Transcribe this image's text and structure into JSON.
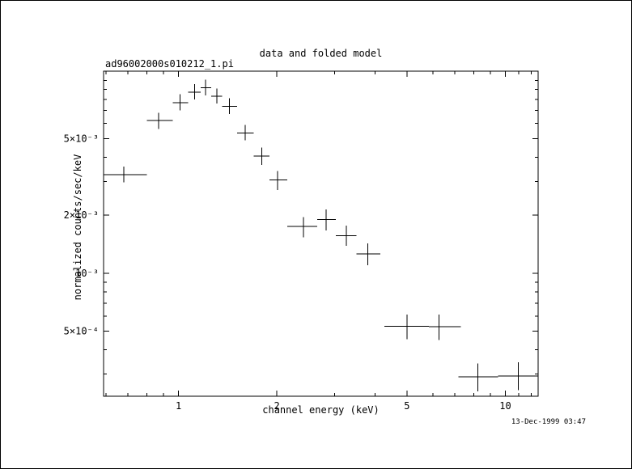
{
  "window": {
    "background": "#ffffff",
    "foreground": "#000000"
  },
  "chart_data": {
    "type": "scatter",
    "marker": "plus-with-error-bars",
    "title": "data and folded model",
    "dataset_label": "ad96002000s010212_1.pi",
    "xlabel": "channel energy (keV)",
    "ylabel": "normalized counts/sec/keV",
    "timestamp": "13-Dec-1999 03:47",
    "x_scale": "log",
    "y_scale": "log",
    "xlim": [
      0.59,
      12.6
    ],
    "ylim": [
      0.00023,
      0.0112
    ],
    "grid": false,
    "legend": false,
    "stroke": "#000000",
    "x_major_ticks": [
      1,
      2,
      5,
      10
    ],
    "x_major_tick_labels": [
      "1",
      "2",
      "5",
      "10"
    ],
    "x_minor_ticks": [
      0.6,
      0.7,
      0.8,
      0.9,
      3,
      4,
      6,
      7,
      8,
      9,
      11,
      12
    ],
    "y_major_ticks": [
      0.005,
      0.002,
      0.001,
      0.0005
    ],
    "y_major_tick_labels": [
      "5×10⁻³",
      "2×10⁻³",
      "10⁻³",
      "5×10⁻⁴"
    ],
    "y_minor_ticks": [
      0.01,
      0.009,
      0.008,
      0.007,
      0.006,
      0.004,
      0.003,
      0.0009,
      0.0008,
      0.0007,
      0.0006,
      0.0004,
      0.0003
    ],
    "points": [
      {
        "x": 0.68,
        "x_lo": 0.59,
        "x_hi": 0.8,
        "y": 0.00325,
        "y_lo": 0.00297,
        "y_hi": 0.00358
      },
      {
        "x": 0.87,
        "x_lo": 0.8,
        "x_hi": 0.96,
        "y": 0.0062,
        "y_lo": 0.0056,
        "y_hi": 0.0068
      },
      {
        "x": 1.01,
        "x_lo": 0.96,
        "x_hi": 1.07,
        "y": 0.0077,
        "y_lo": 0.007,
        "y_hi": 0.0085
      },
      {
        "x": 1.12,
        "x_lo": 1.07,
        "x_hi": 1.17,
        "y": 0.0087,
        "y_lo": 0.008,
        "y_hi": 0.0096
      },
      {
        "x": 1.21,
        "x_lo": 1.17,
        "x_hi": 1.26,
        "y": 0.0092,
        "y_lo": 0.0084,
        "y_hi": 0.0101
      },
      {
        "x": 1.31,
        "x_lo": 1.26,
        "x_hi": 1.36,
        "y": 0.0083,
        "y_lo": 0.0076,
        "y_hi": 0.0091
      },
      {
        "x": 1.43,
        "x_lo": 1.36,
        "x_hi": 1.51,
        "y": 0.00735,
        "y_lo": 0.0067,
        "y_hi": 0.0081
      },
      {
        "x": 1.6,
        "x_lo": 1.51,
        "x_hi": 1.7,
        "y": 0.00535,
        "y_lo": 0.0049,
        "y_hi": 0.0059
      },
      {
        "x": 1.8,
        "x_lo": 1.7,
        "x_hi": 1.9,
        "y": 0.00405,
        "y_lo": 0.00365,
        "y_hi": 0.0045
      },
      {
        "x": 2.01,
        "x_lo": 1.9,
        "x_hi": 2.15,
        "y": 0.00305,
        "y_lo": 0.0027,
        "y_hi": 0.0034
      },
      {
        "x": 2.41,
        "x_lo": 2.15,
        "x_hi": 2.66,
        "y": 0.00175,
        "y_lo": 0.00154,
        "y_hi": 0.00196
      },
      {
        "x": 2.83,
        "x_lo": 2.66,
        "x_hi": 3.03,
        "y": 0.0019,
        "y_lo": 0.00167,
        "y_hi": 0.00215
      },
      {
        "x": 3.26,
        "x_lo": 3.03,
        "x_hi": 3.5,
        "y": 0.00157,
        "y_lo": 0.00139,
        "y_hi": 0.00177
      },
      {
        "x": 3.8,
        "x_lo": 3.5,
        "x_hi": 4.15,
        "y": 0.00126,
        "y_lo": 0.0011,
        "y_hi": 0.00143
      },
      {
        "x": 5.0,
        "x_lo": 4.26,
        "x_hi": 5.83,
        "y": 0.00053,
        "y_lo": 0.000455,
        "y_hi": 0.00061
      },
      {
        "x": 6.27,
        "x_lo": 5.83,
        "x_hi": 7.32,
        "y": 0.000528,
        "y_lo": 0.00045,
        "y_hi": 0.00061
      },
      {
        "x": 8.24,
        "x_lo": 7.19,
        "x_hi": 9.5,
        "y": 0.00029,
        "y_lo": 0.000244,
        "y_hi": 0.00034
      },
      {
        "x": 10.95,
        "x_lo": 9.5,
        "x_hi": 12.55,
        "y": 0.000293,
        "y_lo": 0.000247,
        "y_hi": 0.000345
      }
    ]
  }
}
